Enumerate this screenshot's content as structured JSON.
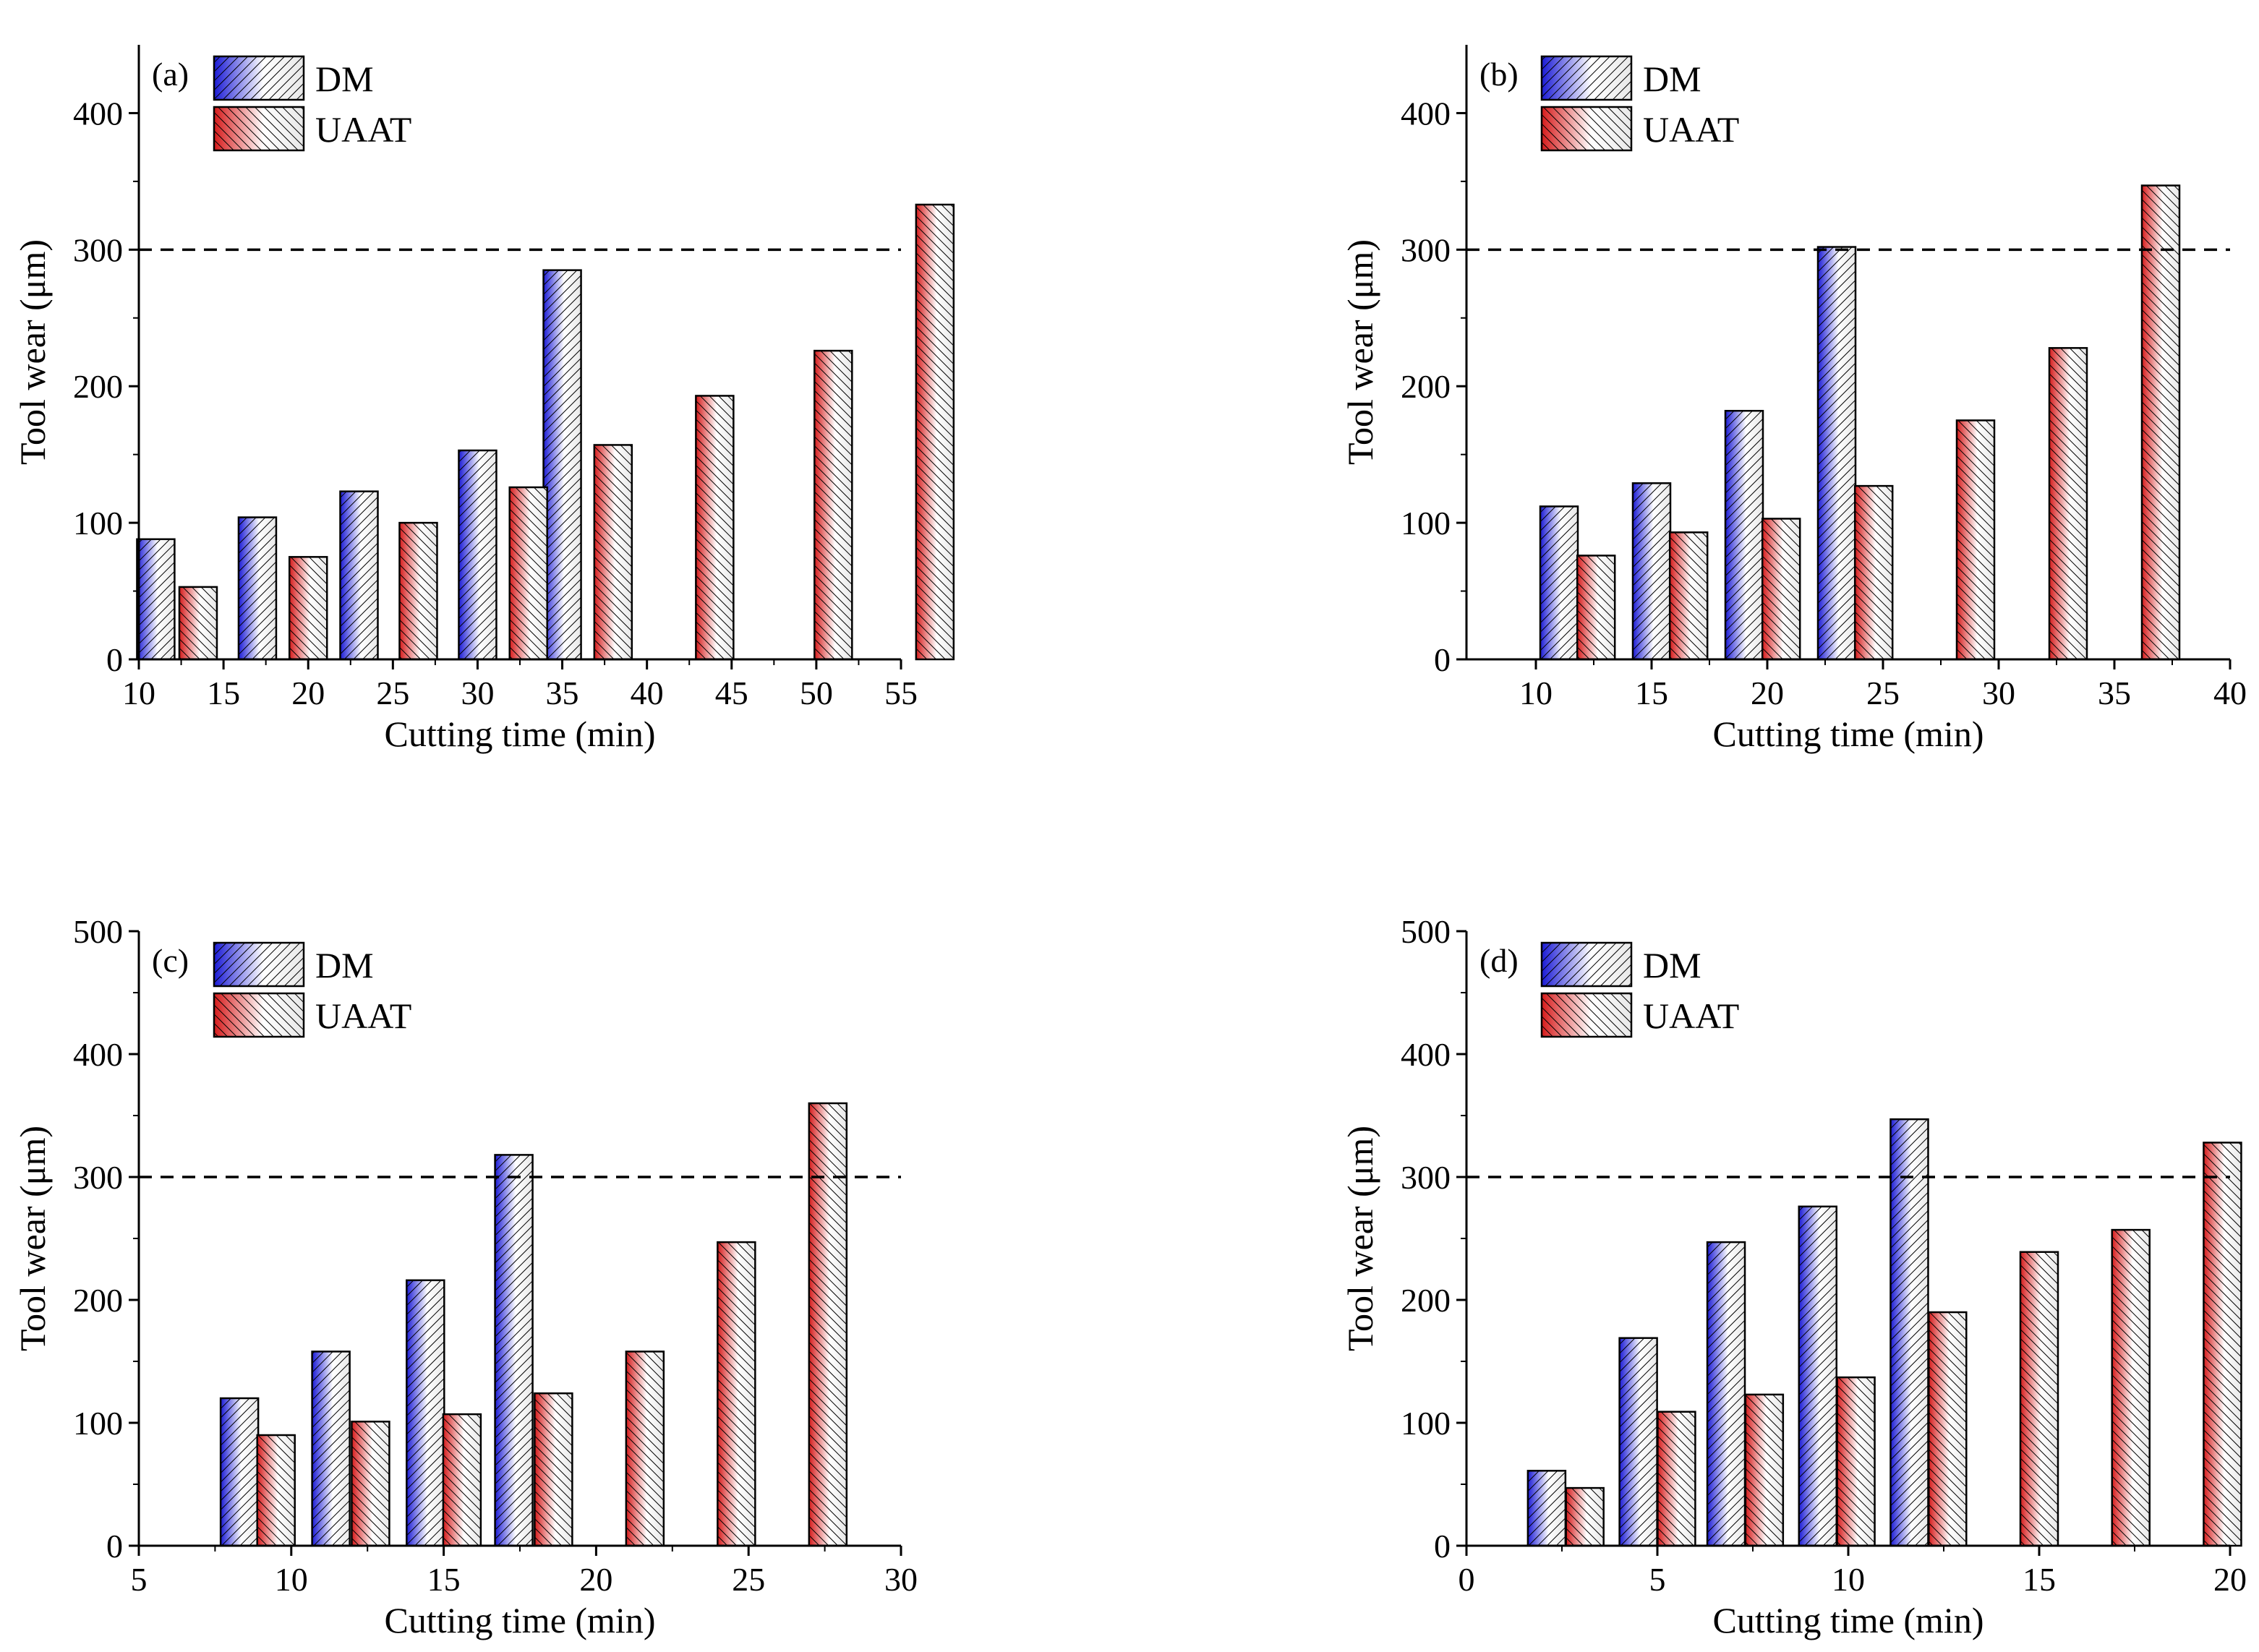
{
  "chart_data": [
    {
      "type": "bar",
      "panel_label": "(a)",
      "xlabel": "Cutting time (min)",
      "ylabel": "Tool wear (μm)",
      "xlim": [
        10,
        55
      ],
      "ylim": [
        0,
        450
      ],
      "xticks": [
        10,
        15,
        20,
        25,
        30,
        35,
        40,
        45,
        50,
        55
      ],
      "yticks": [
        0,
        100,
        200,
        300,
        400
      ],
      "threshold": 300,
      "legend": [
        "DM",
        "UAAT"
      ],
      "series": [
        {
          "name": "DM",
          "color": "#1a1ad6",
          "x": [
            11,
            17,
            23,
            30,
            35
          ],
          "values": [
            88,
            104,
            123,
            153,
            285
          ]
        },
        {
          "name": "UAAT",
          "color": "#d61a1a",
          "x": [
            13.5,
            20,
            26.5,
            33,
            38,
            44,
            51,
            57
          ],
          "values": [
            53,
            75,
            100,
            126,
            157,
            193,
            226,
            333
          ]
        }
      ]
    },
    {
      "type": "bar",
      "panel_label": "(b)",
      "xlabel": "Cutting time (min)",
      "ylabel": "Tool wear (μm)",
      "xlim": [
        7,
        40
      ],
      "ylim": [
        0,
        450
      ],
      "xticks": [
        10,
        15,
        20,
        25,
        30,
        35,
        40
      ],
      "yticks": [
        0,
        100,
        200,
        300,
        400
      ],
      "threshold": 300,
      "legend": [
        "DM",
        "UAAT"
      ],
      "series": [
        {
          "name": "DM",
          "color": "#1a1ad6",
          "x": [
            11,
            15,
            19,
            23
          ],
          "values": [
            112,
            129,
            182,
            302
          ]
        },
        {
          "name": "UAAT",
          "color": "#d61a1a",
          "x": [
            12.6,
            16.6,
            20.6,
            24.6,
            29,
            33,
            37
          ],
          "values": [
            76,
            93,
            103,
            127,
            175,
            228,
            347
          ]
        }
      ]
    },
    {
      "type": "bar",
      "panel_label": "(c)",
      "xlabel": "Cutting time (min)",
      "ylabel": "Tool wear (μm)",
      "xlim": [
        5,
        30
      ],
      "ylim": [
        0,
        500
      ],
      "xticks": [
        5,
        10,
        15,
        20,
        25,
        30
      ],
      "yticks": [
        0,
        100,
        200,
        300,
        400,
        500
      ],
      "threshold": 300,
      "legend": [
        "DM",
        "UAAT"
      ],
      "series": [
        {
          "name": "DM",
          "color": "#1a1ad6",
          "x": [
            8.3,
            11.3,
            14.4,
            17.3
          ],
          "values": [
            120,
            158,
            216,
            318
          ]
        },
        {
          "name": "UAAT",
          "color": "#d61a1a",
          "x": [
            9.5,
            12.6,
            15.6,
            18.6,
            21.6,
            24.6,
            27.6
          ],
          "values": [
            90,
            101,
            107,
            124,
            158,
            247,
            360
          ]
        }
      ]
    },
    {
      "type": "bar",
      "panel_label": "(d)",
      "xlabel": "Cutting time (min)",
      "ylabel": "Tool wear (μm)",
      "xlim": [
        0,
        20
      ],
      "ylim": [
        0,
        500
      ],
      "xticks": [
        0,
        5,
        10,
        15,
        20
      ],
      "yticks": [
        0,
        100,
        200,
        300,
        400,
        500
      ],
      "threshold": 300,
      "legend": [
        "DM",
        "UAAT"
      ],
      "series": [
        {
          "name": "DM",
          "color": "#1a1ad6",
          "x": [
            2.1,
            4.5,
            6.8,
            9.2,
            11.6
          ],
          "values": [
            61,
            169,
            247,
            276,
            347
          ]
        },
        {
          "name": "UAAT",
          "color": "#d61a1a",
          "x": [
            3.1,
            5.5,
            7.8,
            10.2,
            12.6,
            15,
            17.4,
            19.8
          ],
          "values": [
            47,
            109,
            123,
            137,
            190,
            239,
            257,
            328
          ]
        }
      ]
    }
  ]
}
